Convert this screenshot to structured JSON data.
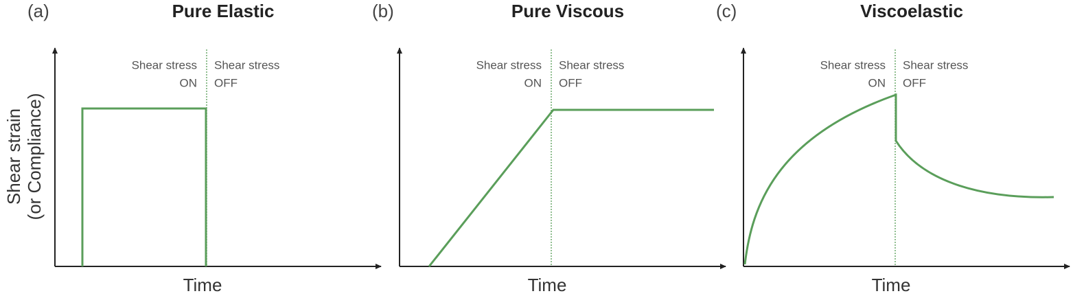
{
  "y_label": [
    "Shear strain",
    "(or Compliance)"
  ],
  "panels": [
    {
      "label": "(a)",
      "title": "Pure Elastic",
      "on_text": [
        "Shear stress",
        "ON"
      ],
      "off_text": [
        "Shear stress",
        "OFF"
      ],
      "x_label": "Time"
    },
    {
      "label": "(b)",
      "title": "Pure Viscous",
      "on_text": [
        "Shear stress",
        "ON"
      ],
      "off_text": [
        "Shear stress",
        "OFF"
      ],
      "x_label": "Time"
    },
    {
      "label": "(c)",
      "title": "Viscoelastic",
      "on_text": [
        "Shear stress",
        "ON"
      ],
      "off_text": [
        "Shear stress",
        "OFF"
      ],
      "x_label": "Time"
    }
  ]
}
